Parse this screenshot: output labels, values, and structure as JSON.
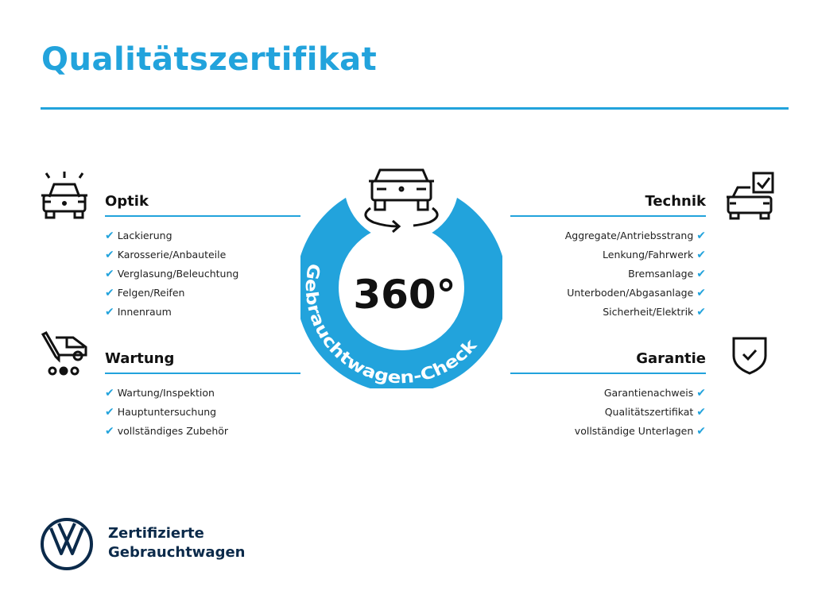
{
  "title": "Qualitätszertifikat",
  "colors": {
    "accent": "#22a3dc",
    "dark": "#0b2a4a"
  },
  "center": {
    "big": "360°",
    "arc_text": "Gebrauchtwagen-Check",
    "icon": "car-rotate-icon"
  },
  "sections": {
    "optik": {
      "heading": "Optik",
      "icon": "car-lights-icon",
      "items": [
        "Lackierung",
        "Karosserie/Anbauteile",
        "Verglasung/Beleuchtung",
        "Felgen/Reifen",
        "Innenraum"
      ]
    },
    "wartung": {
      "heading": "Wartung",
      "icon": "maintenance-van-icon",
      "items": [
        "Wartung/Inspektion",
        "Hauptuntersuchung",
        "vollständiges Zubehör"
      ]
    },
    "technik": {
      "heading": "Technik",
      "icon": "car-checkbox-icon",
      "items": [
        "Aggregate/Antriebsstrang",
        "Lenkung/Fahrwerk",
        "Bremsanlage",
        "Unterboden/Abgasanlage",
        "Sicherheit/Elektrik"
      ]
    },
    "garantie": {
      "heading": "Garantie",
      "icon": "shield-check-icon",
      "items": [
        "Garantienachweis",
        "Qualitätszertifikat",
        "vollständige Unterlagen"
      ]
    }
  },
  "check_mark": "✔",
  "footer": {
    "line1": "Zertifizierte",
    "line2": "Gebrauchtwagen",
    "logo": "VW"
  }
}
